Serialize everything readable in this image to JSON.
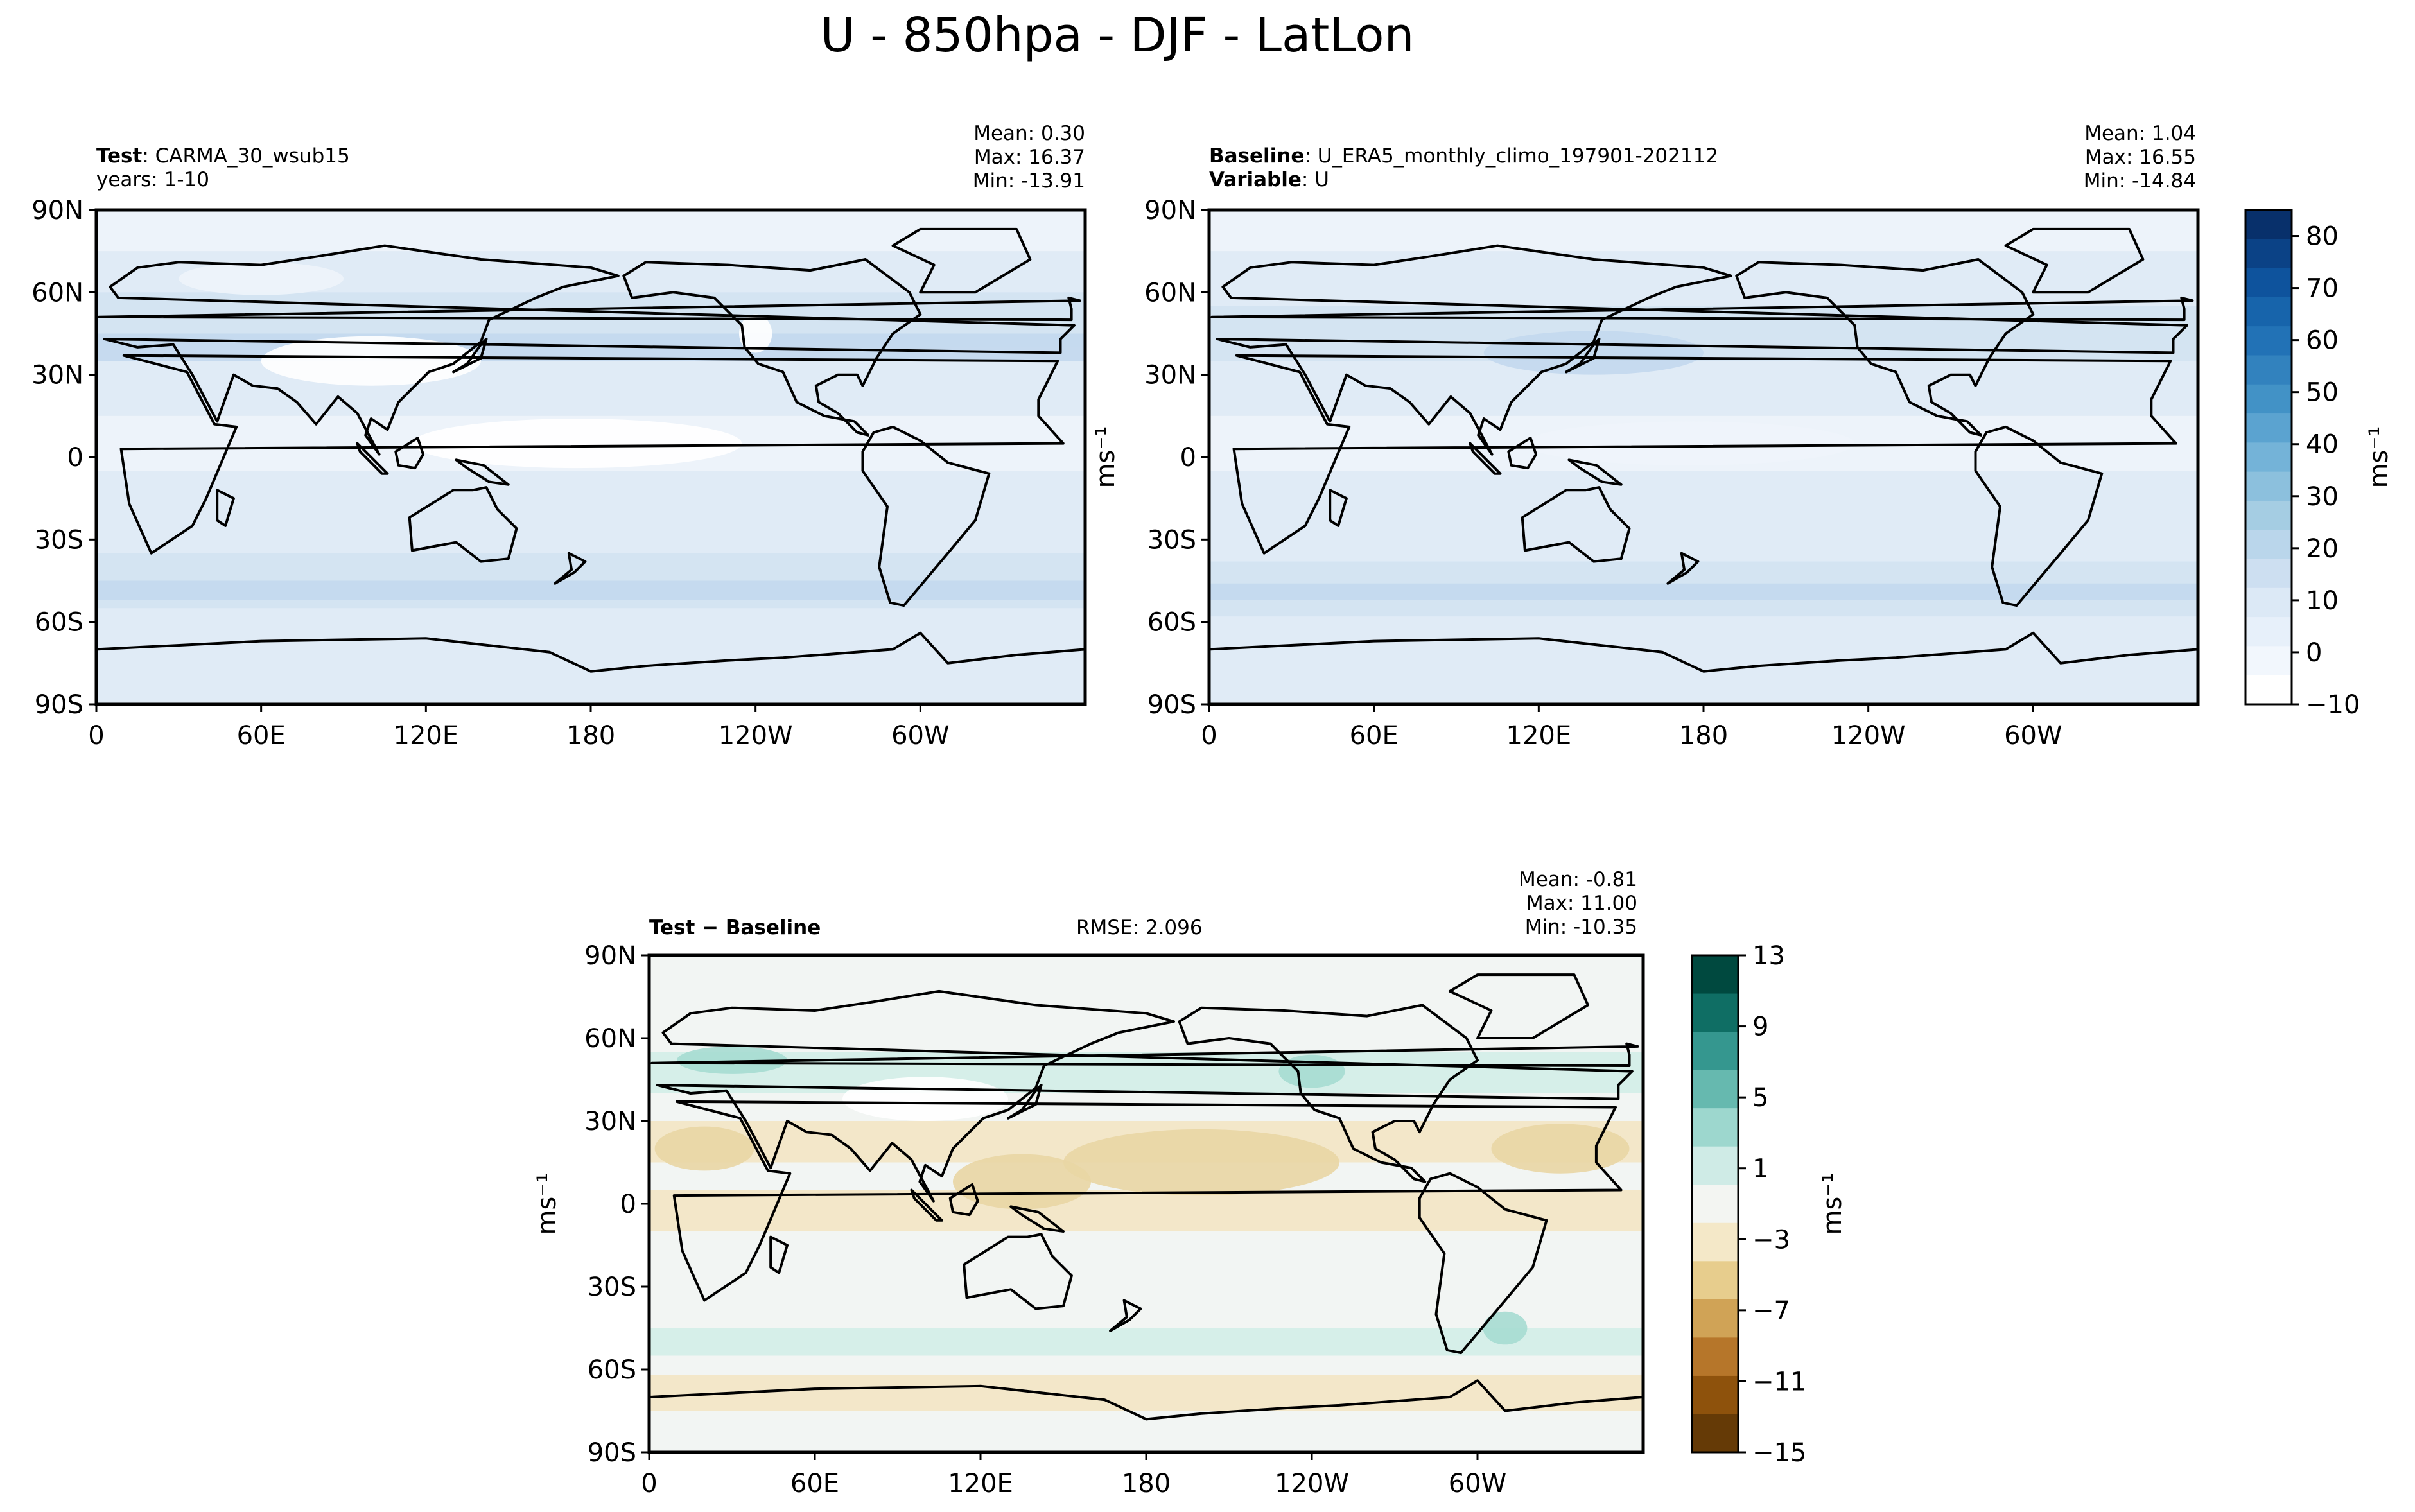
{
  "suptitle": "U - 850hpa - DJF - LatLon",
  "lat_ticks": [
    "90N",
    "60N",
    "30N",
    "0",
    "30S",
    "60S",
    "90S"
  ],
  "lon_ticks": [
    "0",
    "60E",
    "120E",
    "180",
    "120W",
    "60W"
  ],
  "panels": {
    "test": {
      "label": "Test",
      "name": "CARMA_30_wsub15",
      "years": "years: 1-10",
      "mean": "Mean:  0.30",
      "max": "Max: 16.37",
      "min": "Min: -13.91",
      "ylabel": "ms⁻¹"
    },
    "baseline": {
      "label": "Baseline",
      "name": "U_ERA5_monthly_climo_197901-202112",
      "var_label": "Variable",
      "var_name": "U",
      "mean": "Mean:  1.04",
      "max": "Max: 16.55",
      "min": "Min: -14.84"
    },
    "diff": {
      "label": "Test − Baseline",
      "rmse": "RMSE: 2.096",
      "mean": "Mean: -0.81",
      "max": "Max: 11.00",
      "min": "Min: -10.35",
      "ylabel": "ms⁻¹"
    }
  },
  "colorbar_main": {
    "unit": "ms⁻¹",
    "ticks": [
      "80",
      "70",
      "60",
      "50",
      "40",
      "30",
      "20",
      "10",
      "0",
      "−10"
    ],
    "colors": [
      "#08306b",
      "#0b4286",
      "#0e539d",
      "#1764ab",
      "#2272b6",
      "#3282be",
      "#4292c6",
      "#5ba3d0",
      "#74b3d8",
      "#8cc0dd",
      "#a5cde3",
      "#bad6eb",
      "#cddff1",
      "#dce9f6",
      "#e7f0fa",
      "#f2f7fd",
      "#ffffff"
    ]
  },
  "colorbar_diff": {
    "unit": "ms⁻¹",
    "ticks": [
      "13",
      "9",
      "5",
      "1",
      "−3",
      "−7",
      "−11",
      "−15"
    ],
    "colors": [
      "#00493f",
      "#0f6e64",
      "#35978f",
      "#66b9af",
      "#9dd7ce",
      "#cfebe6",
      "#f3f5f2",
      "#f4e8c8",
      "#e7cd8d",
      "#d0a356",
      "#b6762a",
      "#8e520c",
      "#653a06"
    ]
  },
  "field_colors": {
    "pale": "#eef4fb",
    "light": "#e0ebf6",
    "mid": "#d3e3f2",
    "strong": "#c3d8ee",
    "white": "#ffffff",
    "d_neutral": "#f2f5f3",
    "d_tan": "#f3e6c4",
    "d_tan2": "#e9d6a4",
    "d_teal": "#d3eee8",
    "d_teal2": "#a6dcd2"
  }
}
